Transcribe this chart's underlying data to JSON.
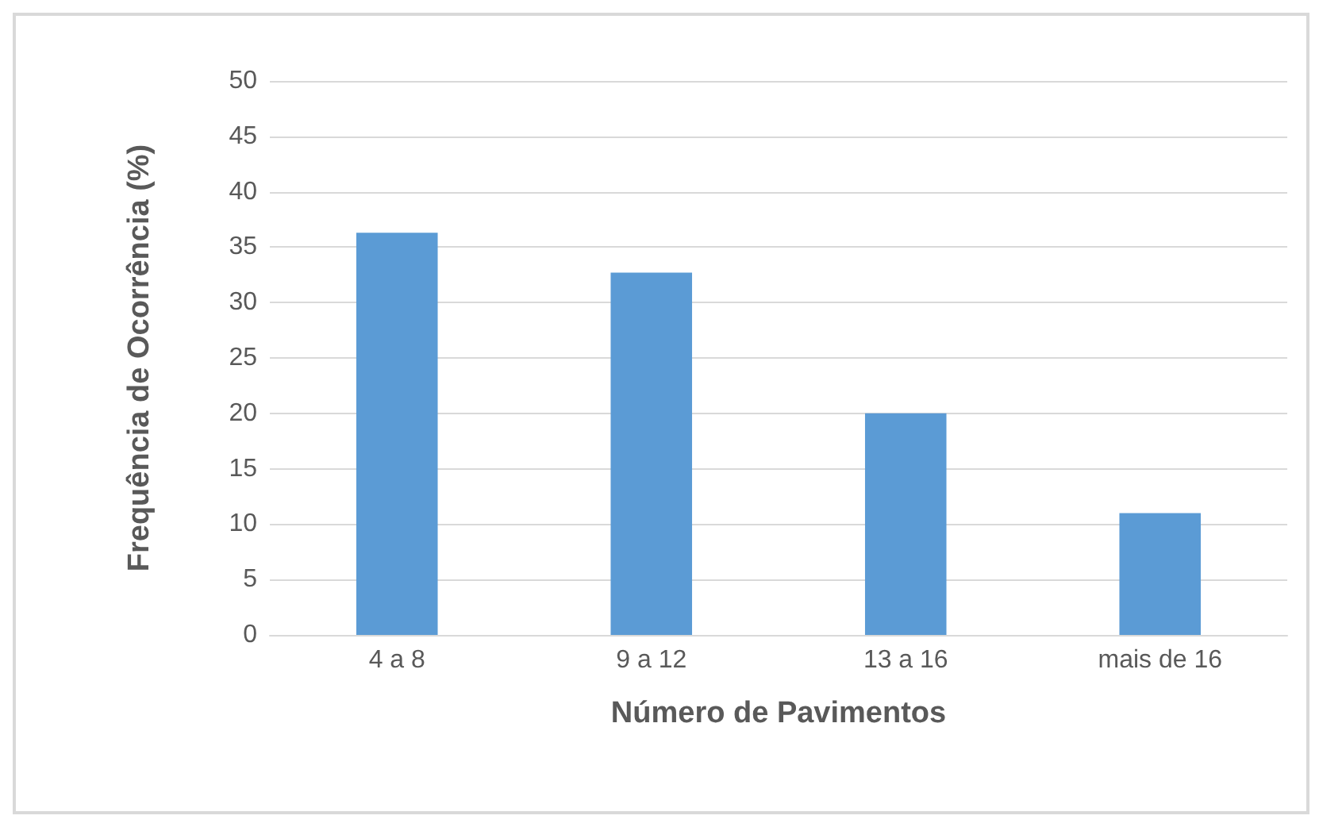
{
  "chart_data": {
    "type": "bar",
    "xlabel": "Número de Pavimentos",
    "ylabel": "Frequência de Ocorrência (%)",
    "categories": [
      "4 a 8",
      "9 a 12",
      "13 a 16",
      "mais de 16"
    ],
    "values": [
      36.3,
      32.7,
      20,
      11
    ],
    "color": "#5b9bd5",
    "ylim": [
      0,
      50
    ],
    "yticks": [
      0,
      5,
      10,
      15,
      20,
      25,
      30,
      35,
      40,
      45,
      50
    ],
    "grid": "y"
  }
}
